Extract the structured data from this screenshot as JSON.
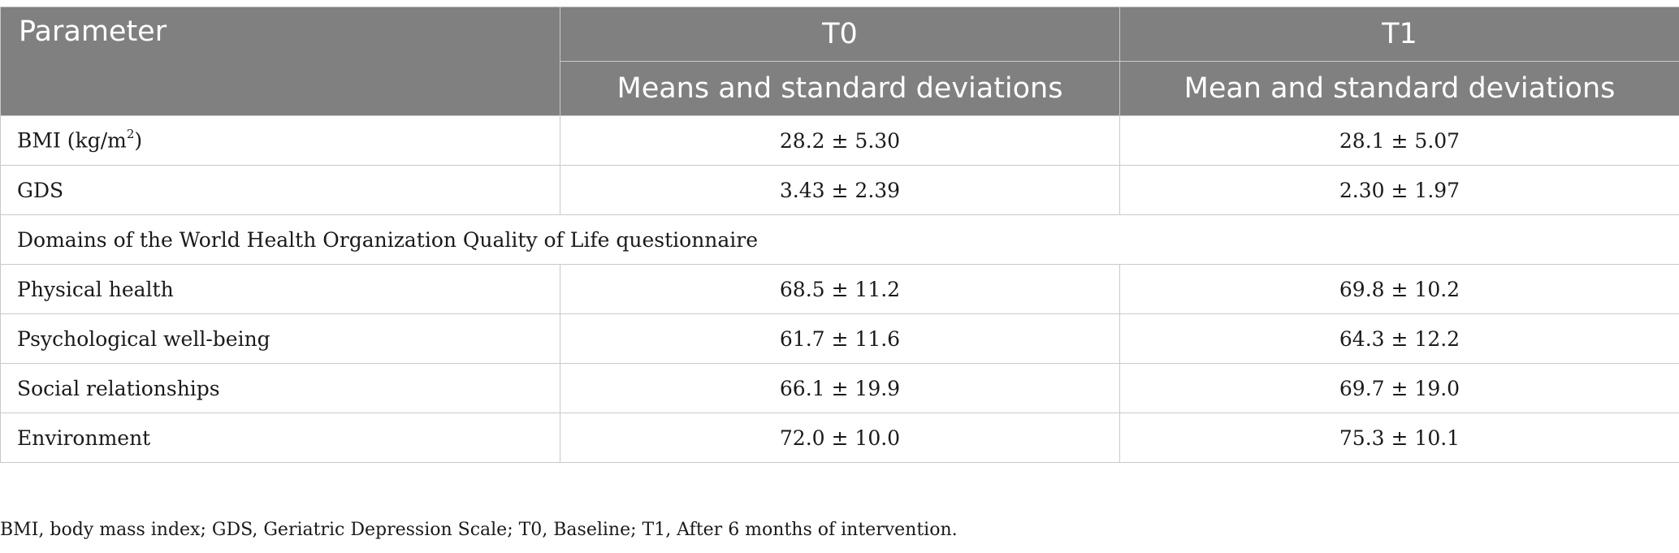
{
  "header": {
    "parameter": "Parameter",
    "t0": "T0",
    "t1": "T1",
    "t0_sub": "Means and standard deviations",
    "t1_sub": "Mean and standard deviations"
  },
  "rows": [
    {
      "label_main": "BMI (kg/m",
      "label_sup": "2",
      "label_end": ")",
      "t0": "28.2 ± 5.30",
      "t1": "28.1 ± 5.07"
    },
    {
      "label": "GDS",
      "t0": "3.43 ± 2.39",
      "t1": "2.30 ± 1.97"
    },
    {
      "section": "Domains of the World Health Organization Quality of Life questionnaire"
    },
    {
      "label": "Physical health",
      "t0": "68.5 ± 11.2",
      "t1": "69.8 ± 10.2"
    },
    {
      "label": "Psychological well-being",
      "t0": "61.7 ± 11.6",
      "t1": "64.3 ± 12.2"
    },
    {
      "label": "Social relationships",
      "t0": "66.1 ± 19.9",
      "t1": "69.7 ± 19.0"
    },
    {
      "label": "Environment",
      "t0": "72.0 ± 10.0",
      "t1": "75.3 ± 10.1"
    }
  ],
  "footnote": "BMI, body mass index; GDS, Geriatric Depression Scale; T0, Baseline; T1, After 6 months of intervention."
}
